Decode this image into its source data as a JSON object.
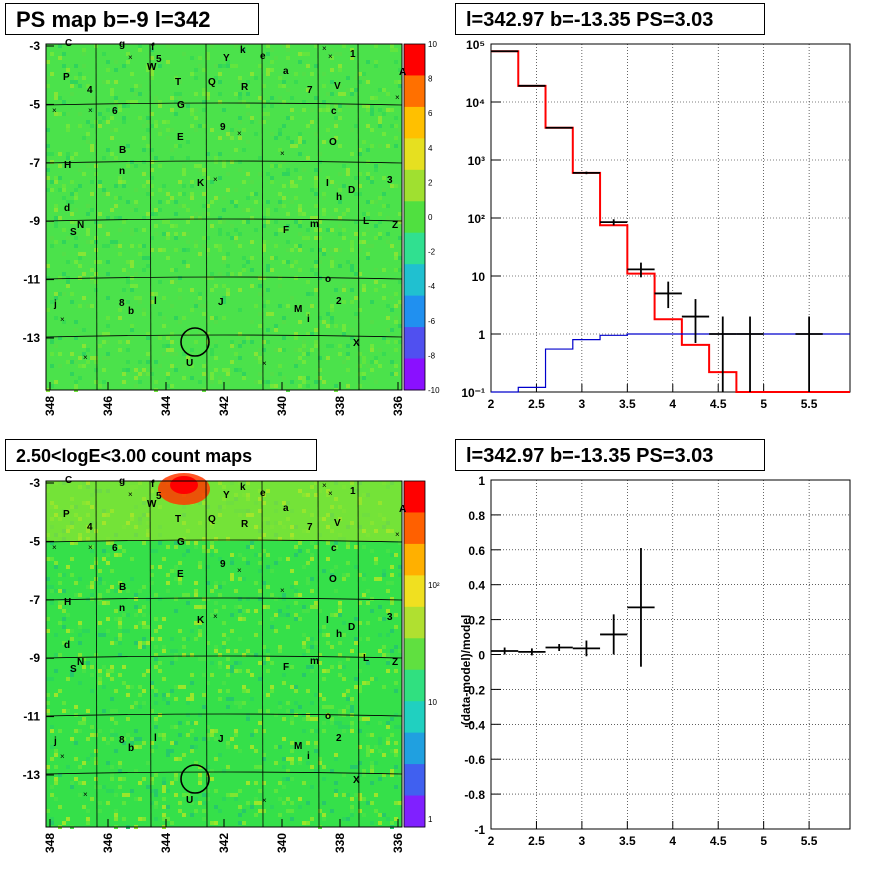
{
  "titles": {
    "map1": "PS map b=-9 l=342",
    "hist": "l=342.97 b=-13.35 PS=3.03",
    "map2": "2.50<logE<3.00 count maps",
    "resid": "l=342.97 b=-13.35 PS=3.03"
  },
  "maps": {
    "x_ticks": [
      "348",
      "346",
      "344",
      "342",
      "340",
      "338",
      "336"
    ],
    "y_ticks": [
      "-3",
      "-5",
      "-7",
      "-9",
      "-11",
      "-13"
    ],
    "labels": [
      "C",
      "g",
      "f",
      "W",
      "5",
      "Y",
      "k",
      "e",
      "1",
      "P",
      "A",
      "T",
      "Q",
      "a",
      "R",
      "7",
      "V",
      "4",
      "G",
      "6",
      "c",
      "E",
      "9",
      "O",
      "B",
      "H",
      "n",
      "K",
      "I",
      "h",
      "D",
      "3",
      "d",
      "S",
      "N",
      "F",
      "m",
      "L",
      "Z",
      "o",
      "j",
      "8",
      "b",
      "l",
      "J",
      "M",
      "2",
      "i",
      "U",
      "X"
    ],
    "map1_colorbar_ticks": [
      "10",
      "8",
      "6",
      "4",
      "2",
      "0",
      "-2",
      "-4",
      "-6",
      "-8",
      "-10"
    ],
    "map2_colorbar_ticks": [
      "10²",
      "10",
      "1"
    ],
    "colors": {
      "background": "#4be24b",
      "hotspot": "#ff3a00",
      "grid": "#000000"
    }
  },
  "chart_data": [
    {
      "type": "step",
      "title": "l=342.97 b=-13.35 PS=3.03",
      "xlim": [
        2,
        5.95
      ],
      "ylim": [
        0.1,
        100000
      ],
      "yscale": "log",
      "x_ticks": [
        "2",
        "2.5",
        "3",
        "3.5",
        "4",
        "4.5",
        "5",
        "5.5"
      ],
      "y_ticks": [
        "10⁻¹",
        "1",
        "10",
        "10²",
        "10³",
        "10⁴",
        "10⁵"
      ],
      "grid": true,
      "series": [
        {
          "color": "#ff0000",
          "edges": [
            2,
            2.3,
            2.6,
            2.9,
            3.2,
            3.5,
            3.8,
            4.1,
            4.4,
            4.7,
            5.95
          ],
          "values": [
            75000,
            19000,
            3600,
            600,
            75,
            11,
            1.8,
            0.65,
            0.22,
            0.1
          ]
        },
        {
          "color": "#0000cc",
          "edges": [
            2,
            2.3,
            2.6,
            2.9,
            3.2,
            3.5,
            3.8,
            5.95
          ],
          "values": [
            0.1,
            0.12,
            0.55,
            0.8,
            0.95,
            1.0,
            1.0
          ]
        },
        {
          "color": "#000000",
          "points": [
            {
              "x": 2.15,
              "y": 75000,
              "xerr": 0.15,
              "lo": 75000,
              "hi": 75000
            },
            {
              "x": 2.45,
              "y": 19000,
              "xerr": 0.15,
              "lo": 19000,
              "hi": 19000
            },
            {
              "x": 2.75,
              "y": 3600,
              "xerr": 0.15,
              "lo": 3500,
              "hi": 3700
            },
            {
              "x": 3.05,
              "y": 600,
              "xerr": 0.15,
              "lo": 570,
              "hi": 630
            },
            {
              "x": 3.35,
              "y": 85,
              "xerr": 0.15,
              "lo": 75,
              "hi": 95
            },
            {
              "x": 3.65,
              "y": 13,
              "xerr": 0.15,
              "lo": 9.5,
              "hi": 17
            },
            {
              "x": 3.95,
              "y": 5,
              "xerr": 0.15,
              "lo": 2.8,
              "hi": 8
            },
            {
              "x": 4.25,
              "y": 2,
              "xerr": 0.15,
              "lo": 0.7,
              "hi": 4
            },
            {
              "x": 4.55,
              "y": 1,
              "xerr": 0.15,
              "lo": 0.1,
              "hi": 2
            },
            {
              "x": 4.85,
              "y": 1,
              "xerr": 0.15,
              "lo": 0.1,
              "hi": 2
            },
            {
              "x": 5.5,
              "y": 1,
              "xerr": 0.15,
              "lo": 0.1,
              "hi": 2
            }
          ]
        }
      ]
    },
    {
      "type": "scatter",
      "title": "l=342.97 b=-13.35 PS=3.03",
      "ylabel": "(data-model)/model",
      "xlim": [
        2,
        5.95
      ],
      "ylim": [
        -1,
        1
      ],
      "x_ticks": [
        "2",
        "2.5",
        "3",
        "3.5",
        "4",
        "4.5",
        "5",
        "5.5"
      ],
      "y_ticks": [
        "-1",
        "-0.8",
        "-0.6",
        "-0.4",
        "-0.2",
        "0",
        "0.2",
        "0.4",
        "0.6",
        "0.8",
        "1"
      ],
      "grid": true,
      "series": [
        {
          "color": "#000000",
          "points": [
            {
              "x": 2.15,
              "y": 0.02,
              "xerr": 0.15,
              "lo": 0.0,
              "hi": 0.04
            },
            {
              "x": 2.45,
              "y": 0.015,
              "xerr": 0.15,
              "lo": -0.005,
              "hi": 0.035
            },
            {
              "x": 2.75,
              "y": 0.04,
              "xerr": 0.15,
              "lo": 0.02,
              "hi": 0.06
            },
            {
              "x": 3.05,
              "y": 0.035,
              "xerr": 0.15,
              "lo": -0.01,
              "hi": 0.08
            },
            {
              "x": 3.35,
              "y": 0.115,
              "xerr": 0.15,
              "lo": 0.0,
              "hi": 0.23
            },
            {
              "x": 3.65,
              "y": 0.27,
              "xerr": 0.15,
              "lo": -0.07,
              "hi": 0.61
            }
          ]
        }
      ]
    }
  ]
}
